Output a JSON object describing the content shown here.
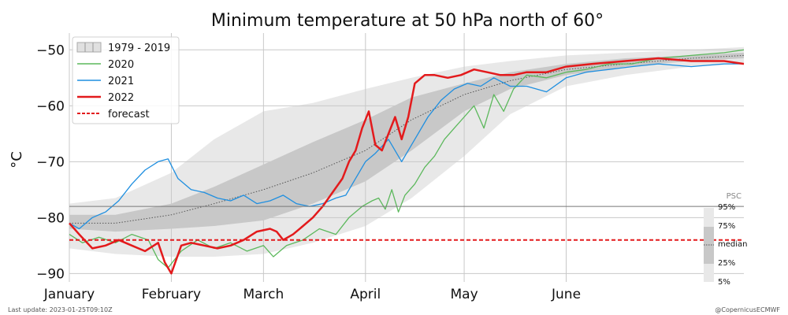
{
  "chart_data": {
    "type": "line",
    "title": "Minimum temperature at 50 hPa north of 60°",
    "ylabel": "°C",
    "xlabel": "",
    "ylim": [
      -91.5,
      -47
    ],
    "yticks": [
      -50,
      -60,
      -70,
      -80,
      -90
    ],
    "ytick_labels": [
      "−50",
      "−60",
      "−70",
      "−80",
      "−90"
    ],
    "x_unit": "day of year",
    "xlim": [
      1,
      206
    ],
    "month_ticks": [
      {
        "label": "January",
        "day": 1
      },
      {
        "label": "February",
        "day": 32
      },
      {
        "label": "March",
        "day": 60
      },
      {
        "label": "April",
        "day": 91
      },
      {
        "label": "May",
        "day": 121
      },
      {
        "label": "June",
        "day": 152
      }
    ],
    "grid": true,
    "legend_position": "top-left",
    "legend": [
      {
        "label": "1979 - 2019",
        "kind": "band"
      },
      {
        "label": "2020",
        "kind": "line",
        "color": "#5cb85c"
      },
      {
        "label": "2021",
        "kind": "line",
        "color": "#1f8fe0"
      },
      {
        "label": "2022",
        "kind": "line",
        "color": "#e31a1c"
      },
      {
        "label": "forecast",
        "kind": "dashed",
        "color": "#e31a1c"
      }
    ],
    "climatology": {
      "name": "1979 - 2019",
      "x": [
        1,
        15,
        32,
        45,
        60,
        75,
        91,
        105,
        121,
        135,
        152,
        170,
        190,
        206
      ],
      "p05": [
        -85.5,
        -86.5,
        -87.0,
        -87.0,
        -86.5,
        -84.5,
        -81.5,
        -76.5,
        -69.0,
        -61.5,
        -56.5,
        -54.5,
        -53.0,
        -52.5
      ],
      "p25": [
        -82.0,
        -82.5,
        -82.0,
        -81.5,
        -80.5,
        -77.5,
        -73.5,
        -68.0,
        -61.0,
        -57.0,
        -54.5,
        -53.0,
        -52.0,
        -51.5
      ],
      "median": [
        -81.0,
        -81.0,
        -79.5,
        -77.5,
        -75.0,
        -72.0,
        -68.0,
        -62.5,
        -58.0,
        -55.5,
        -53.5,
        -52.5,
        -51.5,
        -51.0
      ],
      "p75": [
        -79.5,
        -79.5,
        -77.5,
        -74.5,
        -70.5,
        -66.5,
        -62.5,
        -58.5,
        -56.0,
        -54.0,
        -52.5,
        -51.5,
        -51.0,
        -50.5
      ],
      "p95": [
        -77.5,
        -76.5,
        -72.0,
        -66.0,
        -61.0,
        -59.5,
        -57.0,
        -55.0,
        -53.0,
        -52.0,
        -51.0,
        -50.5,
        -50.0,
        -49.5
      ]
    },
    "series": [
      {
        "name": "2020",
        "color": "#5cb85c",
        "x": [
          1,
          5,
          10,
          15,
          20,
          25,
          28,
          31,
          35,
          40,
          45,
          50,
          55,
          60,
          63,
          67,
          72,
          77,
          82,
          86,
          90,
          93,
          95,
          97,
          99,
          101,
          103,
          106,
          109,
          112,
          115,
          118,
          121,
          124,
          127,
          130,
          133,
          136,
          140,
          146,
          152,
          158,
          165,
          172,
          180,
          190,
          200,
          206
        ],
        "y": [
          -83,
          -84.5,
          -83.5,
          -84.5,
          -83,
          -84,
          -87.5,
          -89,
          -86,
          -84,
          -85.5,
          -84.5,
          -86,
          -85,
          -87,
          -85,
          -84,
          -82,
          -83,
          -80,
          -78,
          -77,
          -76.5,
          -78.5,
          -75,
          -79,
          -76,
          -74,
          -71,
          -69,
          -66,
          -64,
          -62,
          -60,
          -64,
          -58,
          -61,
          -57,
          -54.5,
          -55,
          -54,
          -53.5,
          -52.5,
          -52.5,
          -51.5,
          -51,
          -50.5,
          -50
        ]
      },
      {
        "name": "2021",
        "color": "#1f8fe0",
        "x": [
          1,
          4,
          8,
          12,
          16,
          20,
          24,
          28,
          31,
          34,
          38,
          42,
          46,
          50,
          54,
          58,
          62,
          66,
          70,
          74,
          78,
          82,
          85,
          88,
          91,
          94,
          98,
          102,
          106,
          110,
          114,
          118,
          122,
          126,
          130,
          135,
          140,
          146,
          152,
          158,
          165,
          172,
          180,
          190,
          200,
          206
        ],
        "y": [
          -81,
          -82,
          -80,
          -79,
          -77,
          -74,
          -71.5,
          -70,
          -69.5,
          -73,
          -75,
          -75.5,
          -76.5,
          -77,
          -76,
          -77.5,
          -77,
          -76,
          -77.5,
          -78,
          -77.5,
          -76.5,
          -76,
          -73,
          -70,
          -68.5,
          -66,
          -70,
          -66,
          -62,
          -59,
          -57,
          -56,
          -56.5,
          -55,
          -56.5,
          -56.5,
          -57.5,
          -55,
          -54,
          -53.5,
          -53,
          -52.5,
          -53,
          -52.5,
          -52.5
        ]
      },
      {
        "name": "2022",
        "color": "#e31a1c",
        "x": [
          1,
          4,
          8,
          12,
          16,
          20,
          24,
          28,
          30,
          32,
          35,
          38,
          42,
          46,
          50,
          54,
          58,
          62,
          64,
          66,
          69,
          72,
          75,
          78,
          81,
          84,
          86,
          88,
          90,
          92,
          94,
          96,
          98,
          100,
          102,
          104,
          106,
          109,
          112,
          116,
          120,
          124,
          128,
          132,
          136,
          140,
          146,
          152,
          160,
          170,
          180,
          190,
          200,
          206
        ],
        "y": [
          -81,
          -83,
          -85.5,
          -85,
          -84,
          -85,
          -86,
          -84.5,
          -88,
          -90,
          -85,
          -84.5,
          -85,
          -85.5,
          -85,
          -84,
          -82.5,
          -82,
          -82.5,
          -84,
          -83,
          -81.5,
          -80,
          -78,
          -75.5,
          -73,
          -70,
          -68,
          -64,
          -61,
          -67,
          -68,
          -65,
          -62,
          -66,
          -62,
          -56,
          -54.5,
          -54.5,
          -55,
          -54.5,
          -53.5,
          -54,
          -54.5,
          -54.5,
          -54,
          -54,
          -53,
          -52.5,
          -52,
          -51.5,
          -52,
          -52,
          -52.5
        ]
      }
    ],
    "thresholds": [
      {
        "name": "forecast",
        "y": -84,
        "color": "#e31a1c",
        "style": "dashed"
      },
      {
        "name": "",
        "y": -78,
        "color": "#777777",
        "style": "solid"
      }
    ],
    "psc_legend": {
      "title": "PSC",
      "labels": [
        "95%",
        "75%",
        "median",
        "25%",
        "5%"
      ]
    }
  },
  "footer": {
    "last_update": "Last update: 2023-01-25T09:10Z",
    "credit": "@CopernicusECMWF"
  }
}
